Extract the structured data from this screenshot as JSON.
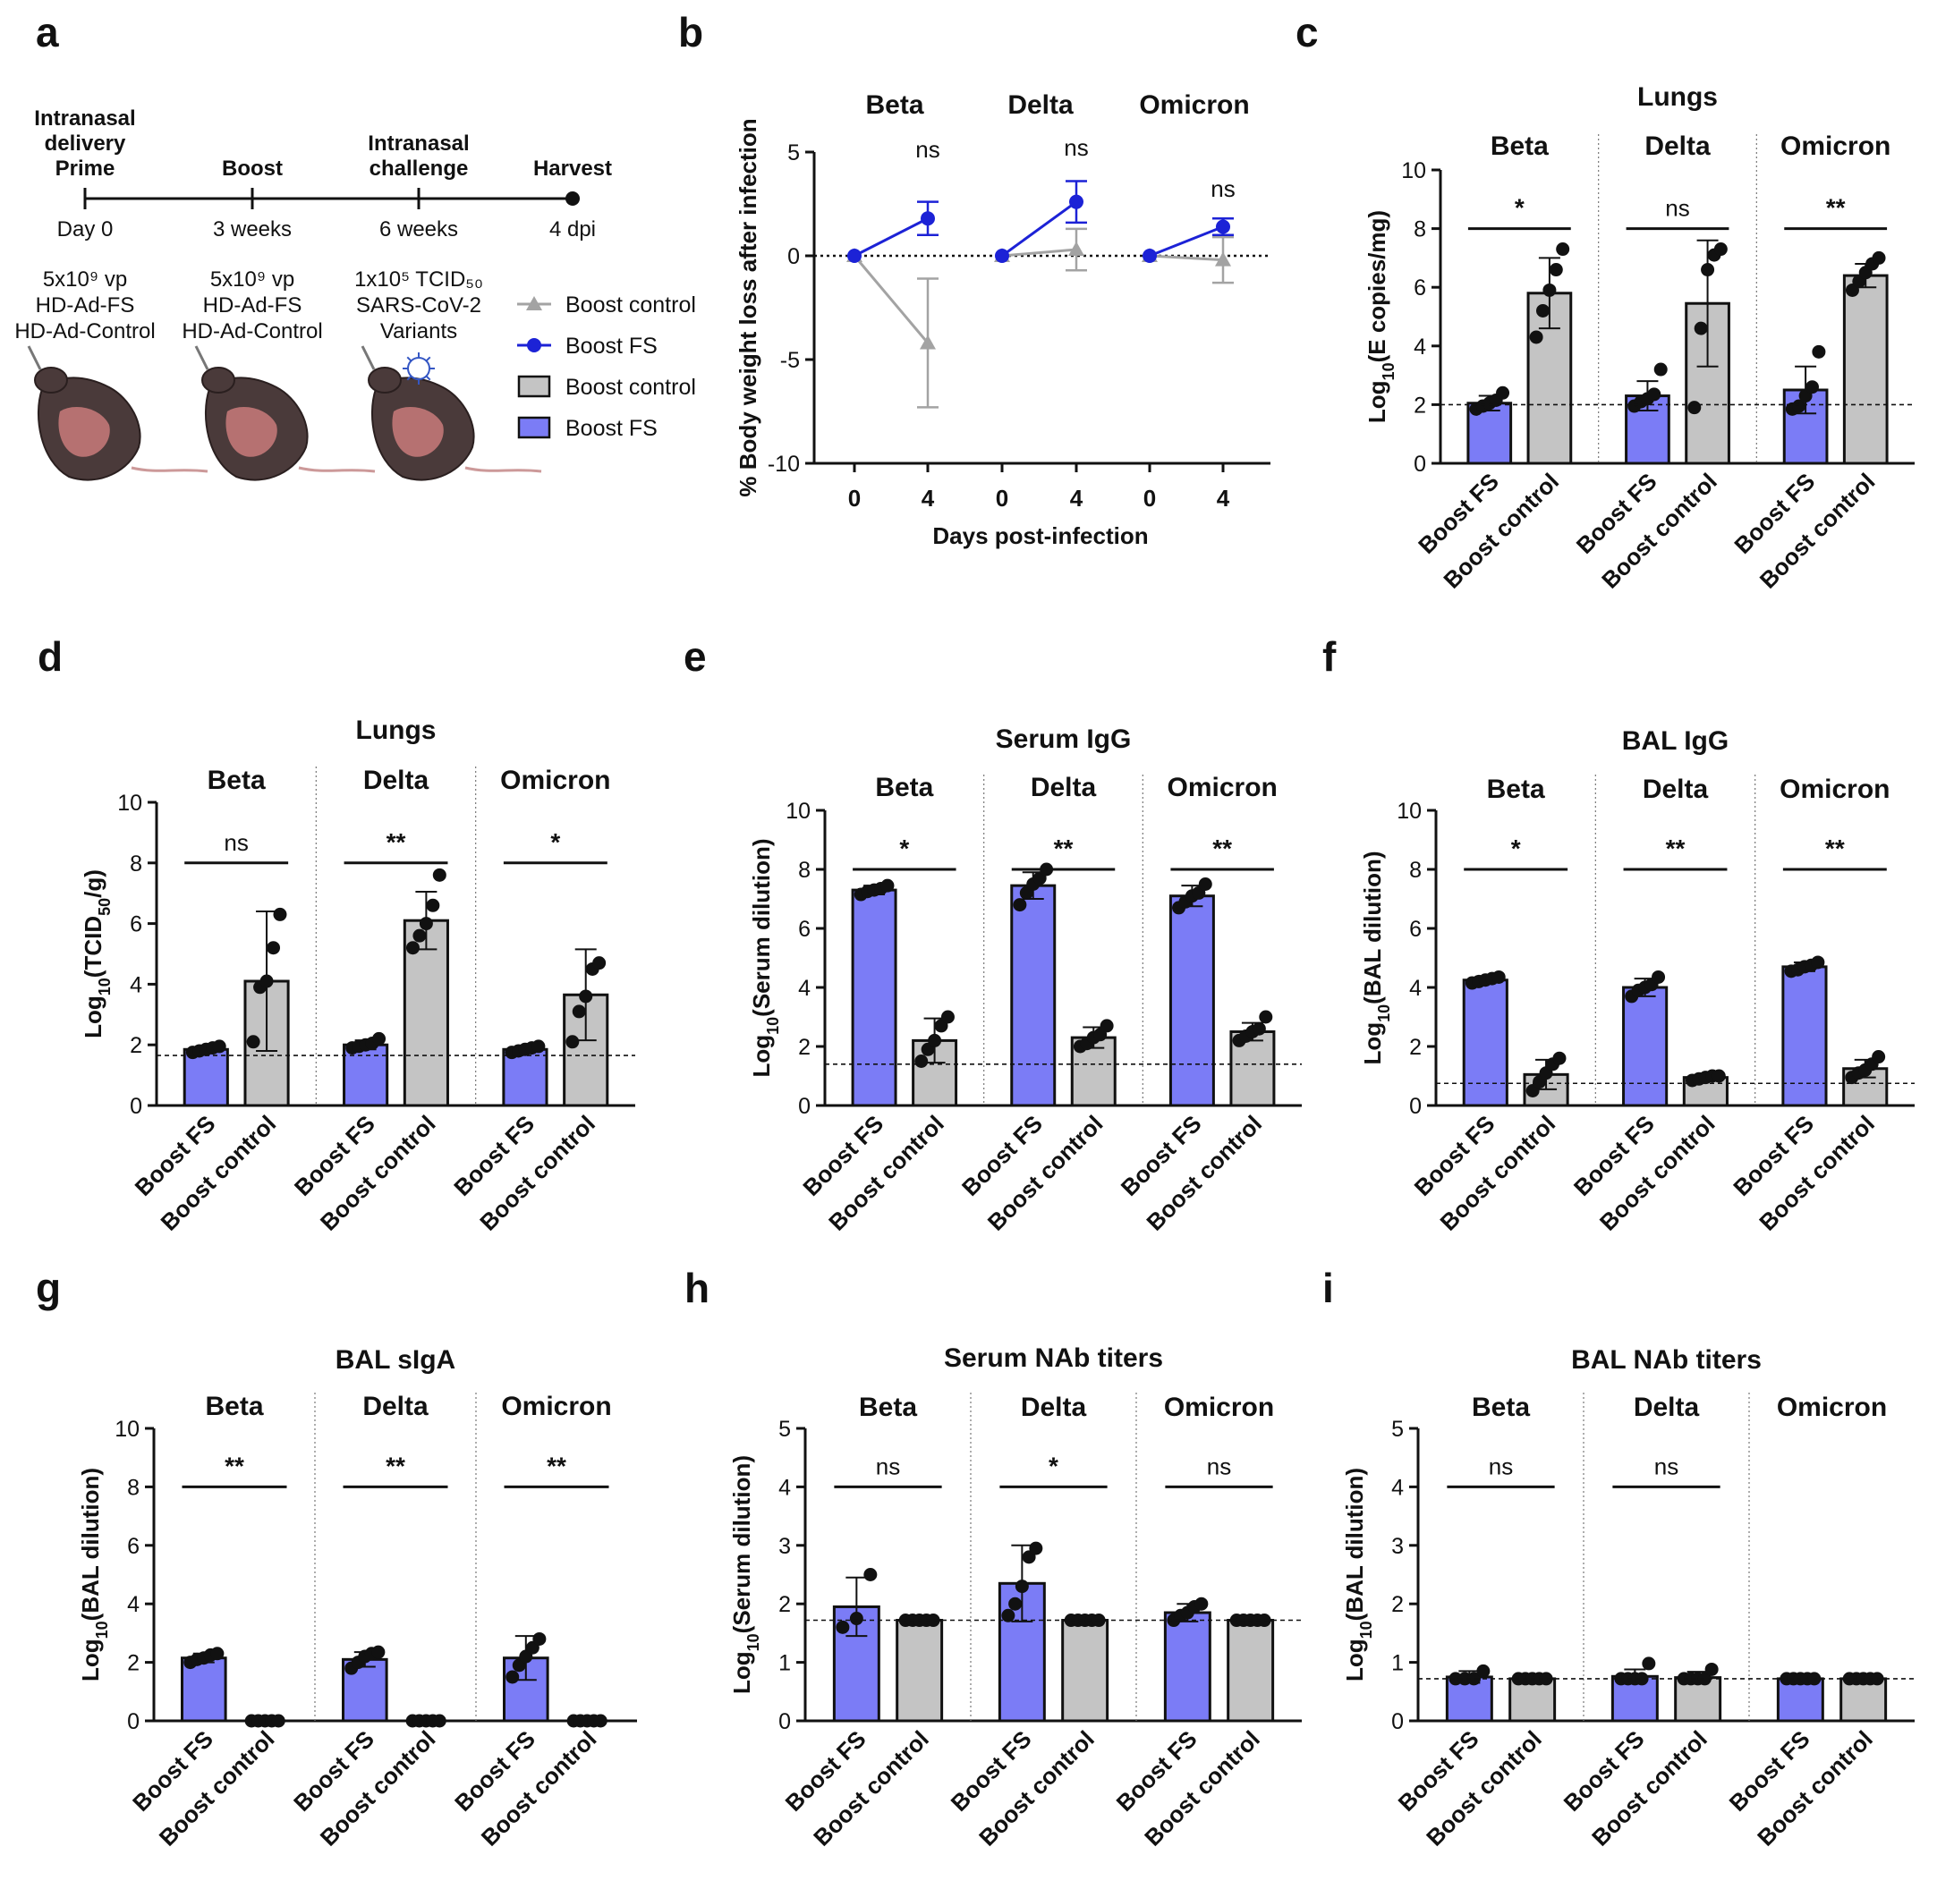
{
  "colors": {
    "fs": "#7b7cf6",
    "control": "#c4c4c4",
    "line_fs": "#1c22d6",
    "line_control": "#a3a3a3",
    "ink": "#111111",
    "red_text": "#8b1a1a"
  },
  "panel_a": {
    "letter": "a",
    "timeline": [
      {
        "title": [
          "Intranasal",
          "delivery",
          "Prime"
        ],
        "day": "Day 0",
        "dose": [
          "5x10⁹ vp",
          "HD-Ad-FS",
          "HD-Ad-Control"
        ],
        "dose_color": "ink"
      },
      {
        "title": [
          "Boost"
        ],
        "day": "3 weeks",
        "dose": [
          "5x10⁹ vp",
          "HD-Ad-FS",
          "HD-Ad-Control"
        ],
        "dose_color": "ink"
      },
      {
        "title": [
          "Intranasal",
          "challenge"
        ],
        "day": "6 weeks",
        "dose": [
          "1x10⁵ TCID₅₀",
          "SARS-CoV-2",
          "Variants"
        ],
        "dose_color": "red"
      },
      {
        "title": [
          "Harvest"
        ],
        "day": "4 dpi",
        "dose": [],
        "dose_color": "ink"
      }
    ],
    "legend": [
      {
        "type": "line-triangle",
        "label": "Boost control",
        "color": "line_control"
      },
      {
        "type": "line-circle",
        "label": "Boost FS",
        "color": "line_fs"
      },
      {
        "type": "box",
        "label": "Boost control",
        "color": "control"
      },
      {
        "type": "box",
        "label": "Boost FS",
        "color": "fs"
      }
    ]
  },
  "chart_data": [
    {
      "letter": "b",
      "type": "line",
      "title": "",
      "groups": [
        "Beta",
        "Delta",
        "Omicron"
      ],
      "x_ticks": [
        "0",
        "4",
        "0",
        "4",
        "0",
        "4"
      ],
      "xlabel": "Days post-infection",
      "ylabel": "% Body weight loss after infection",
      "ylim": [
        -10,
        5
      ],
      "yticks": [
        -10,
        -5,
        0,
        5
      ],
      "reference_line": 0,
      "significance": [
        "ns",
        "ns",
        "ns"
      ],
      "series": [
        {
          "name": "Boost FS",
          "color": "line_fs",
          "marker": "circle",
          "points": [
            [
              [
                0,
                0
              ],
              [
                4,
                1.8
              ]
            ],
            [
              [
                0,
                0
              ],
              [
                4,
                2.6
              ]
            ],
            [
              [
                0,
                0
              ],
              [
                4,
                1.4
              ]
            ]
          ],
          "errors": [
            [
              0,
              0.8
            ],
            [
              0,
              1.0
            ],
            [
              0,
              0.4
            ]
          ]
        },
        {
          "name": "Boost control",
          "color": "line_control",
          "marker": "triangle",
          "points": [
            [
              [
                0,
                0
              ],
              [
                4,
                -4.2
              ]
            ],
            [
              [
                0,
                0
              ],
              [
                4,
                0.3
              ]
            ],
            [
              [
                0,
                0
              ],
              [
                4,
                -0.2
              ]
            ]
          ],
          "errors": [
            [
              0,
              3.1
            ],
            [
              0,
              1.0
            ],
            [
              0,
              1.1
            ]
          ]
        }
      ]
    },
    {
      "letter": "c",
      "type": "bar",
      "title": "Lungs",
      "groups": [
        "Beta",
        "Delta",
        "Omicron"
      ],
      "categories": [
        "Boost FS",
        "Boost control"
      ],
      "ylabel_main": "Log",
      "ylabel_sub": "10",
      "ylabel_tail": "(E copies/mg)",
      "ylim": [
        0,
        10
      ],
      "yticks": [
        0,
        2,
        4,
        6,
        8,
        10
      ],
      "detection_limit": 2.0,
      "significance": [
        "*",
        "ns",
        "**"
      ],
      "bars": [
        {
          "group": "Beta",
          "series": "Boost FS",
          "mean": 2.05,
          "err": 0.25,
          "points": [
            1.85,
            1.95,
            2.05,
            2.15,
            2.4
          ]
        },
        {
          "group": "Beta",
          "series": "Boost control",
          "mean": 5.8,
          "err": 1.2,
          "points": [
            4.3,
            5.2,
            5.9,
            6.6,
            7.3
          ]
        },
        {
          "group": "Delta",
          "series": "Boost FS",
          "mean": 2.3,
          "err": 0.5,
          "points": [
            1.95,
            2.1,
            2.2,
            2.35,
            3.2
          ]
        },
        {
          "group": "Delta",
          "series": "Boost control",
          "mean": 5.45,
          "err": 2.15,
          "points": [
            1.9,
            4.6,
            6.6,
            7.1,
            7.3
          ]
        },
        {
          "group": "Omicron",
          "series": "Boost FS",
          "mean": 2.5,
          "err": 0.8,
          "points": [
            1.85,
            1.95,
            2.3,
            2.6,
            3.8
          ]
        },
        {
          "group": "Omicron",
          "series": "Boost control",
          "mean": 6.4,
          "err": 0.4,
          "points": [
            5.9,
            6.2,
            6.5,
            6.8,
            7.0
          ]
        }
      ]
    },
    {
      "letter": "d",
      "type": "bar",
      "title": "Lungs",
      "groups": [
        "Beta",
        "Delta",
        "Omicron"
      ],
      "categories": [
        "Boost FS",
        "Boost control"
      ],
      "ylabel_main": "Log",
      "ylabel_sub": "10",
      "ylabel_tail": "(TCID50/g)",
      "ylim": [
        0,
        10
      ],
      "yticks": [
        0,
        2,
        4,
        6,
        8,
        10
      ],
      "detection_limit": 1.65,
      "significance": [
        "ns",
        "**",
        "*"
      ],
      "bars": [
        {
          "group": "Beta",
          "series": "Boost FS",
          "mean": 1.85,
          "err": 0.1,
          "points": [
            1.75,
            1.8,
            1.85,
            1.9,
            1.95
          ]
        },
        {
          "group": "Beta",
          "series": "Boost control",
          "mean": 4.1,
          "err": 2.3,
          "points": [
            2.1,
            3.9,
            4.1,
            5.2,
            6.3
          ]
        },
        {
          "group": "Delta",
          "series": "Boost FS",
          "mean": 2.0,
          "err": 0.15,
          "points": [
            1.9,
            1.95,
            2.0,
            2.05,
            2.2
          ]
        },
        {
          "group": "Delta",
          "series": "Boost control",
          "mean": 6.1,
          "err": 0.95,
          "points": [
            5.2,
            5.6,
            6.0,
            6.6,
            7.6
          ]
        },
        {
          "group": "Omicron",
          "series": "Boost FS",
          "mean": 1.85,
          "err": 0.1,
          "points": [
            1.75,
            1.8,
            1.85,
            1.9,
            1.95
          ]
        },
        {
          "group": "Omicron",
          "series": "Boost control",
          "mean": 3.65,
          "err": 1.5,
          "points": [
            2.1,
            3.1,
            3.6,
            4.5,
            4.7
          ]
        }
      ]
    },
    {
      "letter": "e",
      "type": "bar",
      "title": "Serum IgG",
      "groups": [
        "Beta",
        "Delta",
        "Omicron"
      ],
      "categories": [
        "Boost FS",
        "Boost control"
      ],
      "ylabel_main": "Log",
      "ylabel_sub": "10",
      "ylabel_tail": "(Serum dilution)",
      "ylim": [
        0,
        10
      ],
      "yticks": [
        0,
        2,
        4,
        6,
        8,
        10
      ],
      "detection_limit": 1.4,
      "significance": [
        "*",
        "**",
        "**"
      ],
      "bars": [
        {
          "group": "Beta",
          "series": "Boost FS",
          "mean": 7.3,
          "err": 0.15,
          "points": [
            7.15,
            7.25,
            7.3,
            7.35,
            7.45
          ]
        },
        {
          "group": "Beta",
          "series": "Boost control",
          "mean": 2.2,
          "err": 0.75,
          "points": [
            1.5,
            1.9,
            2.2,
            2.7,
            3.0
          ]
        },
        {
          "group": "Delta",
          "series": "Boost FS",
          "mean": 7.45,
          "err": 0.45,
          "points": [
            6.8,
            7.2,
            7.5,
            7.7,
            8.0
          ]
        },
        {
          "group": "Delta",
          "series": "Boost control",
          "mean": 2.3,
          "err": 0.35,
          "points": [
            2.0,
            2.1,
            2.3,
            2.4,
            2.7
          ]
        },
        {
          "group": "Omicron",
          "series": "Boost FS",
          "mean": 7.1,
          "err": 0.35,
          "points": [
            6.7,
            6.9,
            7.1,
            7.2,
            7.5
          ]
        },
        {
          "group": "Omicron",
          "series": "Boost control",
          "mean": 2.5,
          "err": 0.3,
          "points": [
            2.2,
            2.35,
            2.5,
            2.6,
            3.0
          ]
        }
      ]
    },
    {
      "letter": "f",
      "type": "bar",
      "title": "BAL IgG",
      "groups": [
        "Beta",
        "Delta",
        "Omicron"
      ],
      "categories": [
        "Boost FS",
        "Boost control"
      ],
      "ylabel_main": "Log",
      "ylabel_sub": "10",
      "ylabel_tail": "(BAL dilution)",
      "ylim": [
        0,
        10
      ],
      "yticks": [
        0,
        2,
        4,
        6,
        8,
        10
      ],
      "detection_limit": 0.75,
      "significance": [
        "*",
        "**",
        "**"
      ],
      "bars": [
        {
          "group": "Beta",
          "series": "Boost FS",
          "mean": 4.25,
          "err": 0.1,
          "points": [
            4.15,
            4.2,
            4.25,
            4.3,
            4.35
          ]
        },
        {
          "group": "Beta",
          "series": "Boost control",
          "mean": 1.05,
          "err": 0.5,
          "points": [
            0.5,
            0.8,
            1.1,
            1.4,
            1.6
          ]
        },
        {
          "group": "Delta",
          "series": "Boost FS",
          "mean": 4.0,
          "err": 0.3,
          "points": [
            3.7,
            3.9,
            4.0,
            4.1,
            4.35
          ]
        },
        {
          "group": "Delta",
          "series": "Boost control",
          "mean": 0.95,
          "err": 0.1,
          "points": [
            0.85,
            0.9,
            0.95,
            1.0,
            1.0
          ]
        },
        {
          "group": "Omicron",
          "series": "Boost FS",
          "mean": 4.7,
          "err": 0.15,
          "points": [
            4.55,
            4.6,
            4.7,
            4.75,
            4.85
          ]
        },
        {
          "group": "Omicron",
          "series": "Boost control",
          "mean": 1.25,
          "err": 0.3,
          "points": [
            0.95,
            1.1,
            1.2,
            1.4,
            1.65
          ]
        }
      ]
    },
    {
      "letter": "g",
      "type": "bar",
      "title": "BAL sIgA",
      "groups": [
        "Beta",
        "Delta",
        "Omicron"
      ],
      "categories": [
        "Boost FS",
        "Boost control"
      ],
      "ylabel_main": "Log",
      "ylabel_sub": "10",
      "ylabel_tail": "(BAL dilution)",
      "ylim": [
        0,
        10
      ],
      "yticks": [
        0,
        2,
        4,
        6,
        8,
        10
      ],
      "detection_limit": null,
      "significance": [
        "**",
        "**",
        "**"
      ],
      "bars": [
        {
          "group": "Beta",
          "series": "Boost FS",
          "mean": 2.15,
          "err": 0.15,
          "points": [
            2.0,
            2.1,
            2.15,
            2.25,
            2.3
          ]
        },
        {
          "group": "Beta",
          "series": "Boost control",
          "mean": 0.0,
          "err": 0,
          "points": [
            0,
            0,
            0,
            0,
            0
          ]
        },
        {
          "group": "Delta",
          "series": "Boost FS",
          "mean": 2.1,
          "err": 0.25,
          "points": [
            1.8,
            2.0,
            2.2,
            2.3,
            2.35
          ]
        },
        {
          "group": "Delta",
          "series": "Boost control",
          "mean": 0.0,
          "err": 0,
          "points": [
            0,
            0,
            0,
            0,
            0
          ]
        },
        {
          "group": "Omicron",
          "series": "Boost FS",
          "mean": 2.15,
          "err": 0.75,
          "points": [
            1.5,
            1.9,
            2.2,
            2.5,
            2.8
          ]
        },
        {
          "group": "Omicron",
          "series": "Boost control",
          "mean": 0.0,
          "err": 0,
          "points": [
            0,
            0,
            0,
            0,
            0
          ]
        }
      ]
    },
    {
      "letter": "h",
      "type": "bar",
      "title": "Serum NAb titers",
      "groups": [
        "Beta",
        "Delta",
        "Omicron"
      ],
      "categories": [
        "Boost FS",
        "Boost control"
      ],
      "ylabel_main": "Log",
      "ylabel_sub": "10",
      "ylabel_tail": "(Serum dilution)",
      "ylim": [
        0,
        5
      ],
      "yticks": [
        0,
        1,
        2,
        3,
        4,
        5
      ],
      "detection_limit": 1.72,
      "significance": [
        "ns",
        "*",
        "ns"
      ],
      "bars": [
        {
          "group": "Beta",
          "series": "Boost FS",
          "mean": 1.95,
          "err": 0.5,
          "points": [
            1.6,
            1.75,
            2.5
          ]
        },
        {
          "group": "Beta",
          "series": "Boost control",
          "mean": 1.72,
          "err": 0,
          "points": [
            1.72,
            1.72,
            1.72,
            1.72,
            1.72
          ]
        },
        {
          "group": "Delta",
          "series": "Boost FS",
          "mean": 2.35,
          "err": 0.65,
          "points": [
            1.8,
            2.0,
            2.3,
            2.8,
            2.95
          ]
        },
        {
          "group": "Delta",
          "series": "Boost control",
          "mean": 1.72,
          "err": 0,
          "points": [
            1.72,
            1.72,
            1.72,
            1.72,
            1.72
          ]
        },
        {
          "group": "Omicron",
          "series": "Boost FS",
          "mean": 1.85,
          "err": 0.15,
          "points": [
            1.72,
            1.8,
            1.85,
            1.95,
            2.0
          ]
        },
        {
          "group": "Omicron",
          "series": "Boost control",
          "mean": 1.72,
          "err": 0,
          "points": [
            1.72,
            1.72,
            1.72,
            1.72,
            1.72
          ]
        }
      ]
    },
    {
      "letter": "i",
      "type": "bar",
      "title": "BAL NAb titers",
      "groups": [
        "Beta",
        "Delta",
        "Omicron"
      ],
      "categories": [
        "Boost FS",
        "Boost control"
      ],
      "ylabel_main": "Log",
      "ylabel_sub": "10",
      "ylabel_tail": "(BAL dilution)",
      "ylim": [
        0,
        5
      ],
      "yticks": [
        0,
        1,
        2,
        3,
        4,
        5
      ],
      "detection_limit": 0.72,
      "significance": [
        "ns",
        "ns",
        ""
      ],
      "bars": [
        {
          "group": "Beta",
          "series": "Boost FS",
          "mean": 0.75,
          "err": 0.1,
          "points": [
            0.72,
            0.72,
            0.72,
            0.85
          ]
        },
        {
          "group": "Beta",
          "series": "Boost control",
          "mean": 0.72,
          "err": 0,
          "points": [
            0.72,
            0.72,
            0.72,
            0.72,
            0.72
          ]
        },
        {
          "group": "Delta",
          "series": "Boost FS",
          "mean": 0.76,
          "err": 0.12,
          "points": [
            0.72,
            0.72,
            0.72,
            0.72,
            0.98
          ]
        },
        {
          "group": "Delta",
          "series": "Boost control",
          "mean": 0.74,
          "err": 0.1,
          "points": [
            0.72,
            0.72,
            0.72,
            0.72,
            0.88
          ]
        },
        {
          "group": "Omicron",
          "series": "Boost FS",
          "mean": 0.72,
          "err": 0,
          "points": [
            0.72,
            0.72,
            0.72,
            0.72,
            0.72
          ]
        },
        {
          "group": "Omicron",
          "series": "Boost control",
          "mean": 0.72,
          "err": 0,
          "points": [
            0.72,
            0.72,
            0.72,
            0.72,
            0.72
          ]
        }
      ]
    }
  ]
}
